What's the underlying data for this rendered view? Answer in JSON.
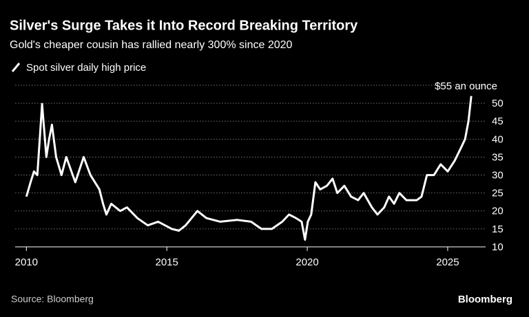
{
  "chart_data": {
    "type": "line",
    "title": "Silver's Surge Takes it Into Record Breaking Territory",
    "subtitle": "Gold's cheaper cousin has rallied nearly 300% since 2020",
    "source": "Source: Bloomberg",
    "brand": "Bloomberg",
    "x": [
      2010.0,
      2010.15,
      2010.27,
      2010.39,
      2010.56,
      2010.71,
      2010.81,
      2010.91,
      2011.06,
      2011.25,
      2011.42,
      2011.74,
      2012.04,
      2012.28,
      2012.6,
      2012.73,
      2012.85,
      2013.02,
      2013.34,
      2013.58,
      2013.95,
      2014.32,
      2014.69,
      2015.18,
      2015.43,
      2015.67,
      2016.09,
      2016.41,
      2016.9,
      2017.51,
      2018.0,
      2018.37,
      2018.74,
      2019.11,
      2019.35,
      2019.6,
      2019.8,
      2019.92,
      2020.02,
      2020.14,
      2020.29,
      2020.46,
      2020.7,
      2020.9,
      2021.07,
      2021.32,
      2021.56,
      2021.81,
      2022.01,
      2022.3,
      2022.5,
      2022.74,
      2022.91,
      2023.09,
      2023.28,
      2023.53,
      2023.9,
      2024.07,
      2024.26,
      2024.51,
      2024.75,
      2025.0,
      2025.25,
      2025.5,
      2025.62,
      2025.74,
      2025.84
    ],
    "series": [
      {
        "name": "Spot silver daily high price",
        "color": "#ffffff",
        "values": [
          24,
          28,
          31,
          30,
          49.8,
          35,
          40,
          44,
          35,
          30,
          35,
          28,
          35,
          30,
          26,
          22,
          19,
          22,
          20,
          21,
          18,
          16,
          17,
          15,
          14.5,
          16,
          20,
          18,
          17,
          17.5,
          17,
          15,
          15,
          17,
          19,
          18,
          17,
          12,
          17,
          19,
          28,
          26,
          27,
          29,
          25,
          27,
          24,
          23,
          25,
          21,
          19,
          21,
          24,
          22,
          25,
          23,
          23,
          24,
          30,
          30,
          33,
          31,
          34,
          38,
          40,
          45,
          52
        ]
      }
    ],
    "xlim": [
      2009.6,
      2026.35
    ],
    "xticks": [
      2010,
      2015,
      2020,
      2025
    ],
    "ylim": [
      10,
      55
    ],
    "yticks": [
      10,
      15,
      20,
      25,
      30,
      35,
      40,
      45,
      50,
      {
        "value": 55,
        "label": "$55 an ounce"
      }
    ],
    "grid": true
  }
}
